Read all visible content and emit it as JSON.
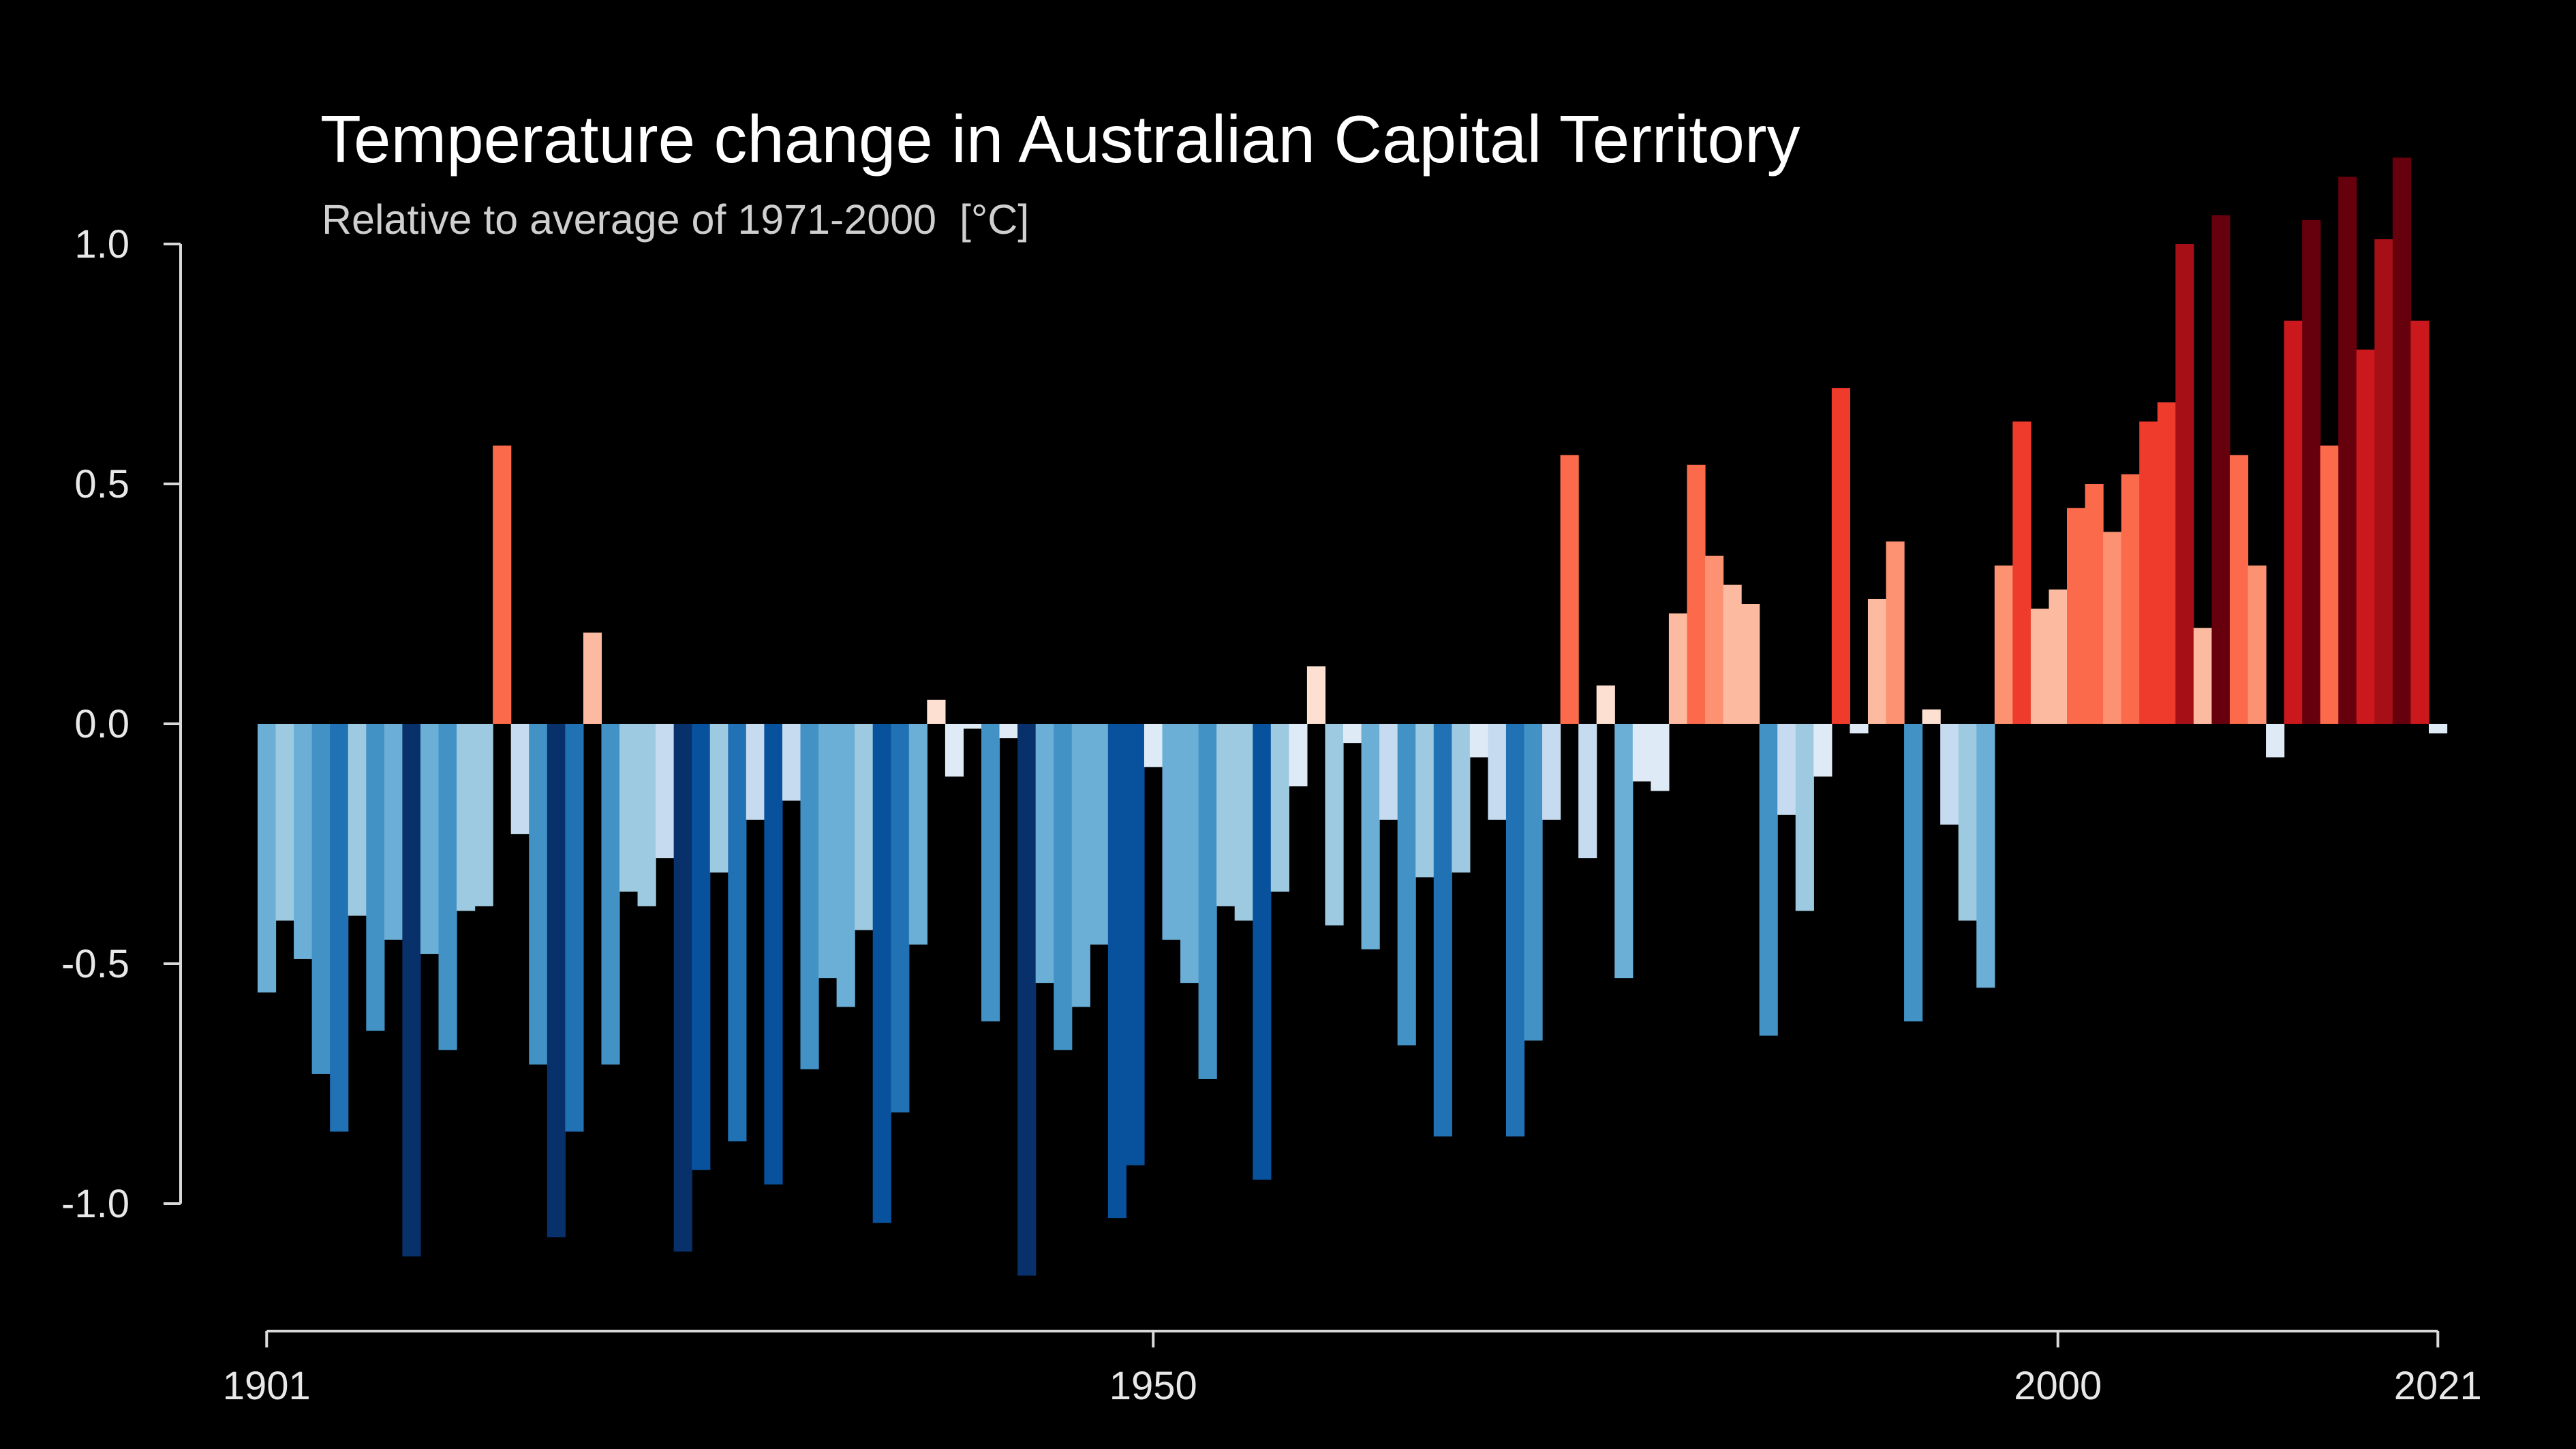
{
  "chart_data": {
    "type": "bar",
    "title": "Temperature change in Australian Capital Territory",
    "subtitle": "Relative to average of 1971-2000  [°C]",
    "xlabel": "",
    "ylabel": "",
    "x_start": 1901,
    "x_end": 2021,
    "ylim": [
      -1.28,
      1.1
    ],
    "y_ticks": [
      "1.0",
      "0.5",
      "0.0",
      "-0.5",
      "-1.0"
    ],
    "x_ticks": [
      "1901",
      "1950",
      "2000",
      "2021"
    ],
    "grid": false,
    "legend": "none",
    "color_scale": {
      "neg": [
        "#deebf7",
        "#c6dbef",
        "#9ecae1",
        "#6baed6",
        "#4292c6",
        "#2171b5",
        "#08519c",
        "#08306b"
      ],
      "pos": [
        "#fee0d2",
        "#fcbba1",
        "#fc9272",
        "#fb6a4a",
        "#ef3b2c",
        "#cb181d",
        "#a50f15",
        "#67000d"
      ]
    },
    "values": [
      -0.56,
      -0.41,
      -0.49,
      -0.73,
      -0.85,
      -0.4,
      -0.64,
      -0.45,
      -1.11,
      -0.48,
      -0.68,
      -0.39,
      -0.38,
      0.58,
      -0.23,
      -0.71,
      -1.07,
      -0.85,
      0.19,
      -0.71,
      -0.35,
      -0.38,
      -0.28,
      -1.1,
      -0.93,
      -0.31,
      -0.87,
      -0.2,
      -0.96,
      -0.16,
      -0.72,
      -0.53,
      -0.59,
      -0.43,
      -1.04,
      -0.81,
      -0.46,
      0.05,
      -0.11,
      -0.01,
      -0.62,
      -0.03,
      -1.15,
      -0.54,
      -0.68,
      -0.59,
      -0.46,
      -1.03,
      -0.92,
      -0.09,
      -0.45,
      -0.54,
      -0.74,
      -0.38,
      -0.41,
      -0.95,
      -0.35,
      -0.13,
      0.12,
      -0.42,
      -0.04,
      -0.47,
      -0.2,
      -0.67,
      -0.32,
      -0.86,
      -0.31,
      -0.07,
      -0.2,
      -0.86,
      -0.66,
      -0.2,
      0.56,
      -0.28,
      0.08,
      -0.53,
      -0.12,
      -0.14,
      0.23,
      0.54,
      0.35,
      0.29,
      0.25,
      -0.65,
      -0.19,
      -0.39,
      -0.11,
      0.7,
      -0.02,
      0.26,
      0.38,
      -0.62,
      0.03,
      -0.21,
      -0.41,
      -0.55,
      0.33,
      0.63,
      0.24,
      0.28,
      0.45,
      0.5,
      0.4,
      0.52,
      0.63,
      0.67,
      1.0,
      0.2,
      1.06,
      0.56,
      0.33,
      -0.07,
      0.84,
      1.05,
      0.58,
      1.14,
      0.78,
      1.01,
      1.18,
      0.84,
      -0.02
    ]
  }
}
